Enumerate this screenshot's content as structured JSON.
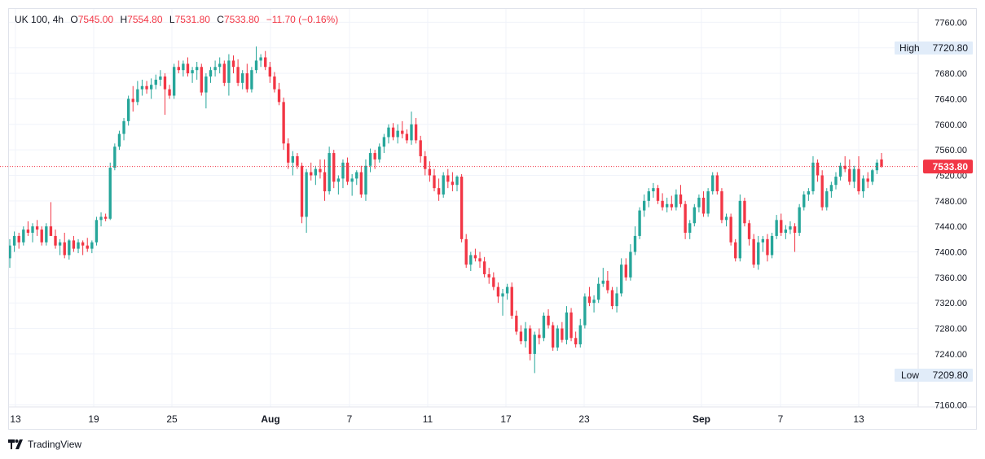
{
  "legend": {
    "symbol": "UK 100, 4h",
    "o_key": "O",
    "o": "7545.00",
    "h_key": "H",
    "h": "7554.80",
    "l_key": "L",
    "l": "7531.80",
    "c_key": "C",
    "c": "7533.80",
    "change": "−11.70 (−0.16%)"
  },
  "footer": {
    "brand": "TradingView",
    "logo_icon": "tradingview-logo-icon"
  },
  "colors": {
    "up": "#26a69a",
    "down": "#f23645",
    "grid": "#f0f3fa",
    "axis_text": "#131722",
    "badge_bg": "#e1ecf9"
  },
  "chart_data": {
    "type": "candlestick",
    "symbol": "UK 100",
    "interval": "4h",
    "ylim": [
      7150,
      7770
    ],
    "y_ticks": [
      "7760.00",
      "7720.00",
      "7680.00",
      "7640.00",
      "7600.00",
      "7560.00",
      "7520.00",
      "7480.00",
      "7440.00",
      "7400.00",
      "7360.00",
      "7320.00",
      "7280.00",
      "7240.00",
      "7160.00"
    ],
    "x_ticks": [
      "13",
      "19",
      "25",
      "Aug",
      "7",
      "11",
      "17",
      "23",
      "Sep",
      "7",
      "13"
    ],
    "last_price": 7533.8,
    "last_price_label": "7533.80",
    "high_label": "High",
    "high": "7720.80",
    "low_label": "Low",
    "low": "7209.80",
    "grid": true,
    "candles": [
      [
        7390,
        7420,
        7375,
        7410
      ],
      [
        7410,
        7432,
        7400,
        7425
      ],
      [
        7425,
        7430,
        7405,
        7415
      ],
      [
        7415,
        7440,
        7410,
        7435
      ],
      [
        7435,
        7448,
        7425,
        7430
      ],
      [
        7430,
        7445,
        7415,
        7440
      ],
      [
        7440,
        7450,
        7425,
        7435
      ],
      [
        7435,
        7440,
        7410,
        7415
      ],
      [
        7415,
        7445,
        7410,
        7440
      ],
      [
        7440,
        7478,
        7430,
        7425
      ],
      [
        7425,
        7435,
        7405,
        7410
      ],
      [
        7410,
        7420,
        7395,
        7415
      ],
      [
        7415,
        7430,
        7390,
        7395
      ],
      [
        7395,
        7420,
        7388,
        7418
      ],
      [
        7418,
        7425,
        7400,
        7405
      ],
      [
        7405,
        7420,
        7398,
        7415
      ],
      [
        7415,
        7418,
        7395,
        7410
      ],
      [
        7410,
        7422,
        7400,
        7405
      ],
      [
        7405,
        7418,
        7398,
        7415
      ],
      [
        7415,
        7455,
        7410,
        7450
      ],
      [
        7450,
        7462,
        7440,
        7455
      ],
      [
        7455,
        7460,
        7448,
        7452
      ],
      [
        7452,
        7540,
        7450,
        7532
      ],
      [
        7532,
        7570,
        7528,
        7565
      ],
      [
        7565,
        7590,
        7560,
        7585
      ],
      [
        7585,
        7610,
        7575,
        7605
      ],
      [
        7605,
        7645,
        7598,
        7640
      ],
      [
        7640,
        7660,
        7620,
        7635
      ],
      [
        7635,
        7668,
        7630,
        7655
      ],
      [
        7655,
        7670,
        7645,
        7660
      ],
      [
        7660,
        7668,
        7648,
        7655
      ],
      [
        7655,
        7672,
        7640,
        7662
      ],
      [
        7662,
        7678,
        7655,
        7670
      ],
      [
        7670,
        7685,
        7660,
        7675
      ],
      [
        7675,
        7680,
        7615,
        7655
      ],
      [
        7655,
        7662,
        7640,
        7645
      ],
      [
        7645,
        7695,
        7640,
        7690
      ],
      [
        7690,
        7700,
        7680,
        7685
      ],
      [
        7685,
        7700,
        7675,
        7695
      ],
      [
        7695,
        7705,
        7675,
        7680
      ],
      [
        7680,
        7690,
        7665,
        7685
      ],
      [
        7685,
        7698,
        7670,
        7690
      ],
      [
        7690,
        7695,
        7645,
        7650
      ],
      [
        7650,
        7680,
        7625,
        7675
      ],
      [
        7675,
        7690,
        7665,
        7685
      ],
      [
        7685,
        7700,
        7675,
        7690
      ],
      [
        7690,
        7705,
        7680,
        7695
      ],
      [
        7695,
        7700,
        7660,
        7665
      ],
      [
        7665,
        7710,
        7645,
        7700
      ],
      [
        7700,
        7708,
        7680,
        7690
      ],
      [
        7690,
        7702,
        7660,
        7665
      ],
      [
        7665,
        7685,
        7655,
        7680
      ],
      [
        7680,
        7695,
        7650,
        7655
      ],
      [
        7655,
        7690,
        7650,
        7685
      ],
      [
        7685,
        7722,
        7680,
        7700
      ],
      [
        7700,
        7710,
        7690,
        7705
      ],
      [
        7705,
        7715,
        7685,
        7690
      ],
      [
        7690,
        7698,
        7665,
        7675
      ],
      [
        7675,
        7682,
        7650,
        7655
      ],
      [
        7655,
        7665,
        7630,
        7635
      ],
      [
        7635,
        7642,
        7560,
        7570
      ],
      [
        7570,
        7578,
        7530,
        7540
      ],
      [
        7540,
        7558,
        7520,
        7550
      ],
      [
        7550,
        7555,
        7530,
        7535
      ],
      [
        7535,
        7540,
        7445,
        7455
      ],
      [
        7455,
        7530,
        7430,
        7525
      ],
      [
        7525,
        7540,
        7512,
        7520
      ],
      [
        7520,
        7535,
        7505,
        7530
      ],
      [
        7530,
        7545,
        7515,
        7525
      ],
      [
        7525,
        7545,
        7480,
        7495
      ],
      [
        7495,
        7565,
        7490,
        7555
      ],
      [
        7555,
        7560,
        7500,
        7510
      ],
      [
        7510,
        7520,
        7490,
        7515
      ],
      [
        7515,
        7545,
        7500,
        7540
      ],
      [
        7540,
        7548,
        7505,
        7510
      ],
      [
        7510,
        7522,
        7488,
        7515
      ],
      [
        7515,
        7528,
        7505,
        7525
      ],
      [
        7525,
        7535,
        7485,
        7490
      ],
      [
        7490,
        7545,
        7480,
        7535
      ],
      [
        7535,
        7562,
        7525,
        7555
      ],
      [
        7555,
        7560,
        7530,
        7545
      ],
      [
        7545,
        7570,
        7540,
        7565
      ],
      [
        7565,
        7585,
        7555,
        7580
      ],
      [
        7580,
        7600,
        7570,
        7595
      ],
      [
        7595,
        7602,
        7575,
        7580
      ],
      [
        7580,
        7600,
        7570,
        7590
      ],
      [
        7590,
        7605,
        7578,
        7585
      ],
      [
        7585,
        7592,
        7570,
        7575
      ],
      [
        7575,
        7620,
        7568,
        7600
      ],
      [
        7600,
        7610,
        7570,
        7575
      ],
      [
        7575,
        7582,
        7540,
        7550
      ],
      [
        7550,
        7558,
        7520,
        7530
      ],
      [
        7530,
        7542,
        7510,
        7520
      ],
      [
        7520,
        7530,
        7495,
        7500
      ],
      [
        7500,
        7515,
        7480,
        7490
      ],
      [
        7490,
        7525,
        7485,
        7520
      ],
      [
        7520,
        7530,
        7500,
        7510
      ],
      [
        7510,
        7525,
        7495,
        7505
      ],
      [
        7505,
        7520,
        7495,
        7518
      ],
      [
        7518,
        7522,
        7415,
        7420
      ],
      [
        7420,
        7428,
        7375,
        7380
      ],
      [
        7380,
        7400,
        7370,
        7395
      ],
      [
        7395,
        7405,
        7385,
        7390
      ],
      [
        7390,
        7400,
        7375,
        7385
      ],
      [
        7385,
        7392,
        7360,
        7365
      ],
      [
        7365,
        7375,
        7350,
        7360
      ],
      [
        7360,
        7368,
        7340,
        7345
      ],
      [
        7345,
        7352,
        7320,
        7330
      ],
      [
        7330,
        7342,
        7300,
        7335
      ],
      [
        7335,
        7350,
        7325,
        7345
      ],
      [
        7345,
        7352,
        7295,
        7300
      ],
      [
        7300,
        7308,
        7270,
        7275
      ],
      [
        7275,
        7285,
        7255,
        7260
      ],
      [
        7260,
        7290,
        7250,
        7280
      ],
      [
        7280,
        7285,
        7230,
        7240
      ],
      [
        7240,
        7275,
        7210,
        7270
      ],
      [
        7270,
        7280,
        7255,
        7265
      ],
      [
        7265,
        7305,
        7260,
        7300
      ],
      [
        7300,
        7310,
        7280,
        7285
      ],
      [
        7285,
        7290,
        7245,
        7250
      ],
      [
        7250,
        7285,
        7245,
        7280
      ],
      [
        7280,
        7290,
        7258,
        7262
      ],
      [
        7262,
        7315,
        7255,
        7305
      ],
      [
        7305,
        7312,
        7260,
        7265
      ],
      [
        7265,
        7275,
        7250,
        7255
      ],
      [
        7255,
        7295,
        7250,
        7285
      ],
      [
        7285,
        7335,
        7280,
        7330
      ],
      [
        7330,
        7345,
        7315,
        7320
      ],
      [
        7320,
        7332,
        7305,
        7325
      ],
      [
        7325,
        7360,
        7320,
        7350
      ],
      [
        7350,
        7375,
        7345,
        7355
      ],
      [
        7355,
        7370,
        7335,
        7340
      ],
      [
        7340,
        7345,
        7310,
        7315
      ],
      [
        7315,
        7345,
        7305,
        7335
      ],
      [
        7335,
        7390,
        7330,
        7380
      ],
      [
        7380,
        7390,
        7355,
        7360
      ],
      [
        7360,
        7412,
        7355,
        7400
      ],
      [
        7400,
        7440,
        7395,
        7425
      ],
      [
        7425,
        7470,
        7420,
        7465
      ],
      [
        7465,
        7490,
        7455,
        7480
      ],
      [
        7480,
        7500,
        7470,
        7495
      ],
      [
        7495,
        7508,
        7485,
        7500
      ],
      [
        7500,
        7505,
        7475,
        7480
      ],
      [
        7480,
        7492,
        7465,
        7470
      ],
      [
        7470,
        7485,
        7462,
        7475
      ],
      [
        7475,
        7488,
        7465,
        7470
      ],
      [
        7470,
        7498,
        7465,
        7490
      ],
      [
        7490,
        7505,
        7470,
        7475
      ],
      [
        7475,
        7480,
        7420,
        7430
      ],
      [
        7430,
        7450,
        7420,
        7445
      ],
      [
        7445,
        7475,
        7440,
        7470
      ],
      [
        7470,
        7490,
        7462,
        7485
      ],
      [
        7485,
        7495,
        7455,
        7460
      ],
      [
        7460,
        7500,
        7455,
        7495
      ],
      [
        7495,
        7525,
        7490,
        7520
      ],
      [
        7520,
        7525,
        7490,
        7495
      ],
      [
        7495,
        7500,
        7445,
        7450
      ],
      [
        7450,
        7460,
        7440,
        7455
      ],
      [
        7455,
        7460,
        7410,
        7415
      ],
      [
        7415,
        7420,
        7385,
        7390
      ],
      [
        7390,
        7490,
        7385,
        7480
      ],
      [
        7480,
        7485,
        7440,
        7445
      ],
      [
        7445,
        7450,
        7410,
        7420
      ],
      [
        7420,
        7428,
        7375,
        7380
      ],
      [
        7380,
        7425,
        7372,
        7415
      ],
      [
        7415,
        7425,
        7400,
        7420
      ],
      [
        7420,
        7428,
        7385,
        7395
      ],
      [
        7395,
        7430,
        7390,
        7425
      ],
      [
        7425,
        7458,
        7420,
        7450
      ],
      [
        7450,
        7460,
        7425,
        7430
      ],
      [
        7430,
        7442,
        7420,
        7435
      ],
      [
        7435,
        7448,
        7428,
        7440
      ],
      [
        7440,
        7445,
        7400,
        7430
      ],
      [
        7430,
        7475,
        7425,
        7470
      ],
      [
        7470,
        7495,
        7465,
        7490
      ],
      [
        7490,
        7500,
        7480,
        7495
      ],
      [
        7495,
        7550,
        7490,
        7540
      ],
      [
        7540,
        7545,
        7510,
        7520
      ],
      [
        7520,
        7528,
        7465,
        7470
      ],
      [
        7470,
        7500,
        7465,
        7495
      ],
      [
        7495,
        7510,
        7485,
        7505
      ],
      [
        7505,
        7525,
        7498,
        7518
      ],
      [
        7518,
        7540,
        7512,
        7535
      ],
      [
        7535,
        7550,
        7525,
        7530
      ],
      [
        7530,
        7545,
        7505,
        7510
      ],
      [
        7510,
        7535,
        7500,
        7530
      ],
      [
        7530,
        7550,
        7490,
        7495
      ],
      [
        7495,
        7520,
        7485,
        7515
      ],
      [
        7515,
        7525,
        7500,
        7510
      ],
      [
        7510,
        7530,
        7505,
        7528
      ],
      [
        7528,
        7545,
        7522,
        7540
      ],
      [
        7545,
        7555,
        7532,
        7534
      ]
    ]
  }
}
